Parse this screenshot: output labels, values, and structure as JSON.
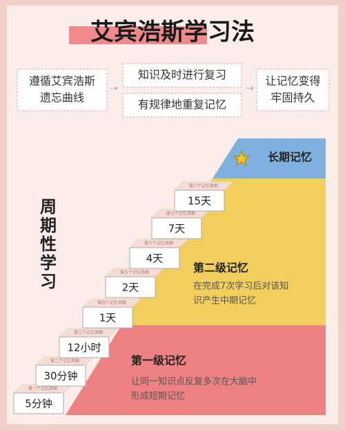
{
  "title": "艾宾浩斯学习法",
  "flow": [
    [
      "遵循艾宾浩斯",
      "遗忘曲线"
    ],
    [
      "知识及时进行复习"
    ],
    [
      "有规律地重复记忆"
    ],
    [
      "让记忆变得",
      "牢固持久"
    ]
  ],
  "side_label": [
    "周",
    "期",
    "性",
    "学",
    "习"
  ],
  "steps": [
    {
      "label": "5分钟",
      "cycle": "第一个记忆周期"
    },
    {
      "label": "30分钟",
      "cycle": "第二个记忆周期"
    },
    {
      "label": "12小时",
      "cycle": "第三个记忆周期"
    },
    {
      "label": "1天",
      "cycle": "第四个记忆周期"
    },
    {
      "label": "2天",
      "cycle": "第五个记忆周期"
    },
    {
      "label": "4天",
      "cycle": "第六个记忆周期"
    },
    {
      "label": "7天",
      "cycle": "第七个记忆周期"
    },
    {
      "label": "15天",
      "cycle": "第八个记忆周期"
    }
  ],
  "levels": {
    "long": {
      "title": "长期记忆"
    },
    "second": {
      "title": "第二级记忆",
      "desc": [
        "在完成7次学习后对该知",
        "识产生中期记忆"
      ]
    },
    "first": {
      "title": "第一级记忆",
      "desc": [
        "让同一知识点反复多次在大脑中",
        "形成短期记忆"
      ]
    }
  }
}
